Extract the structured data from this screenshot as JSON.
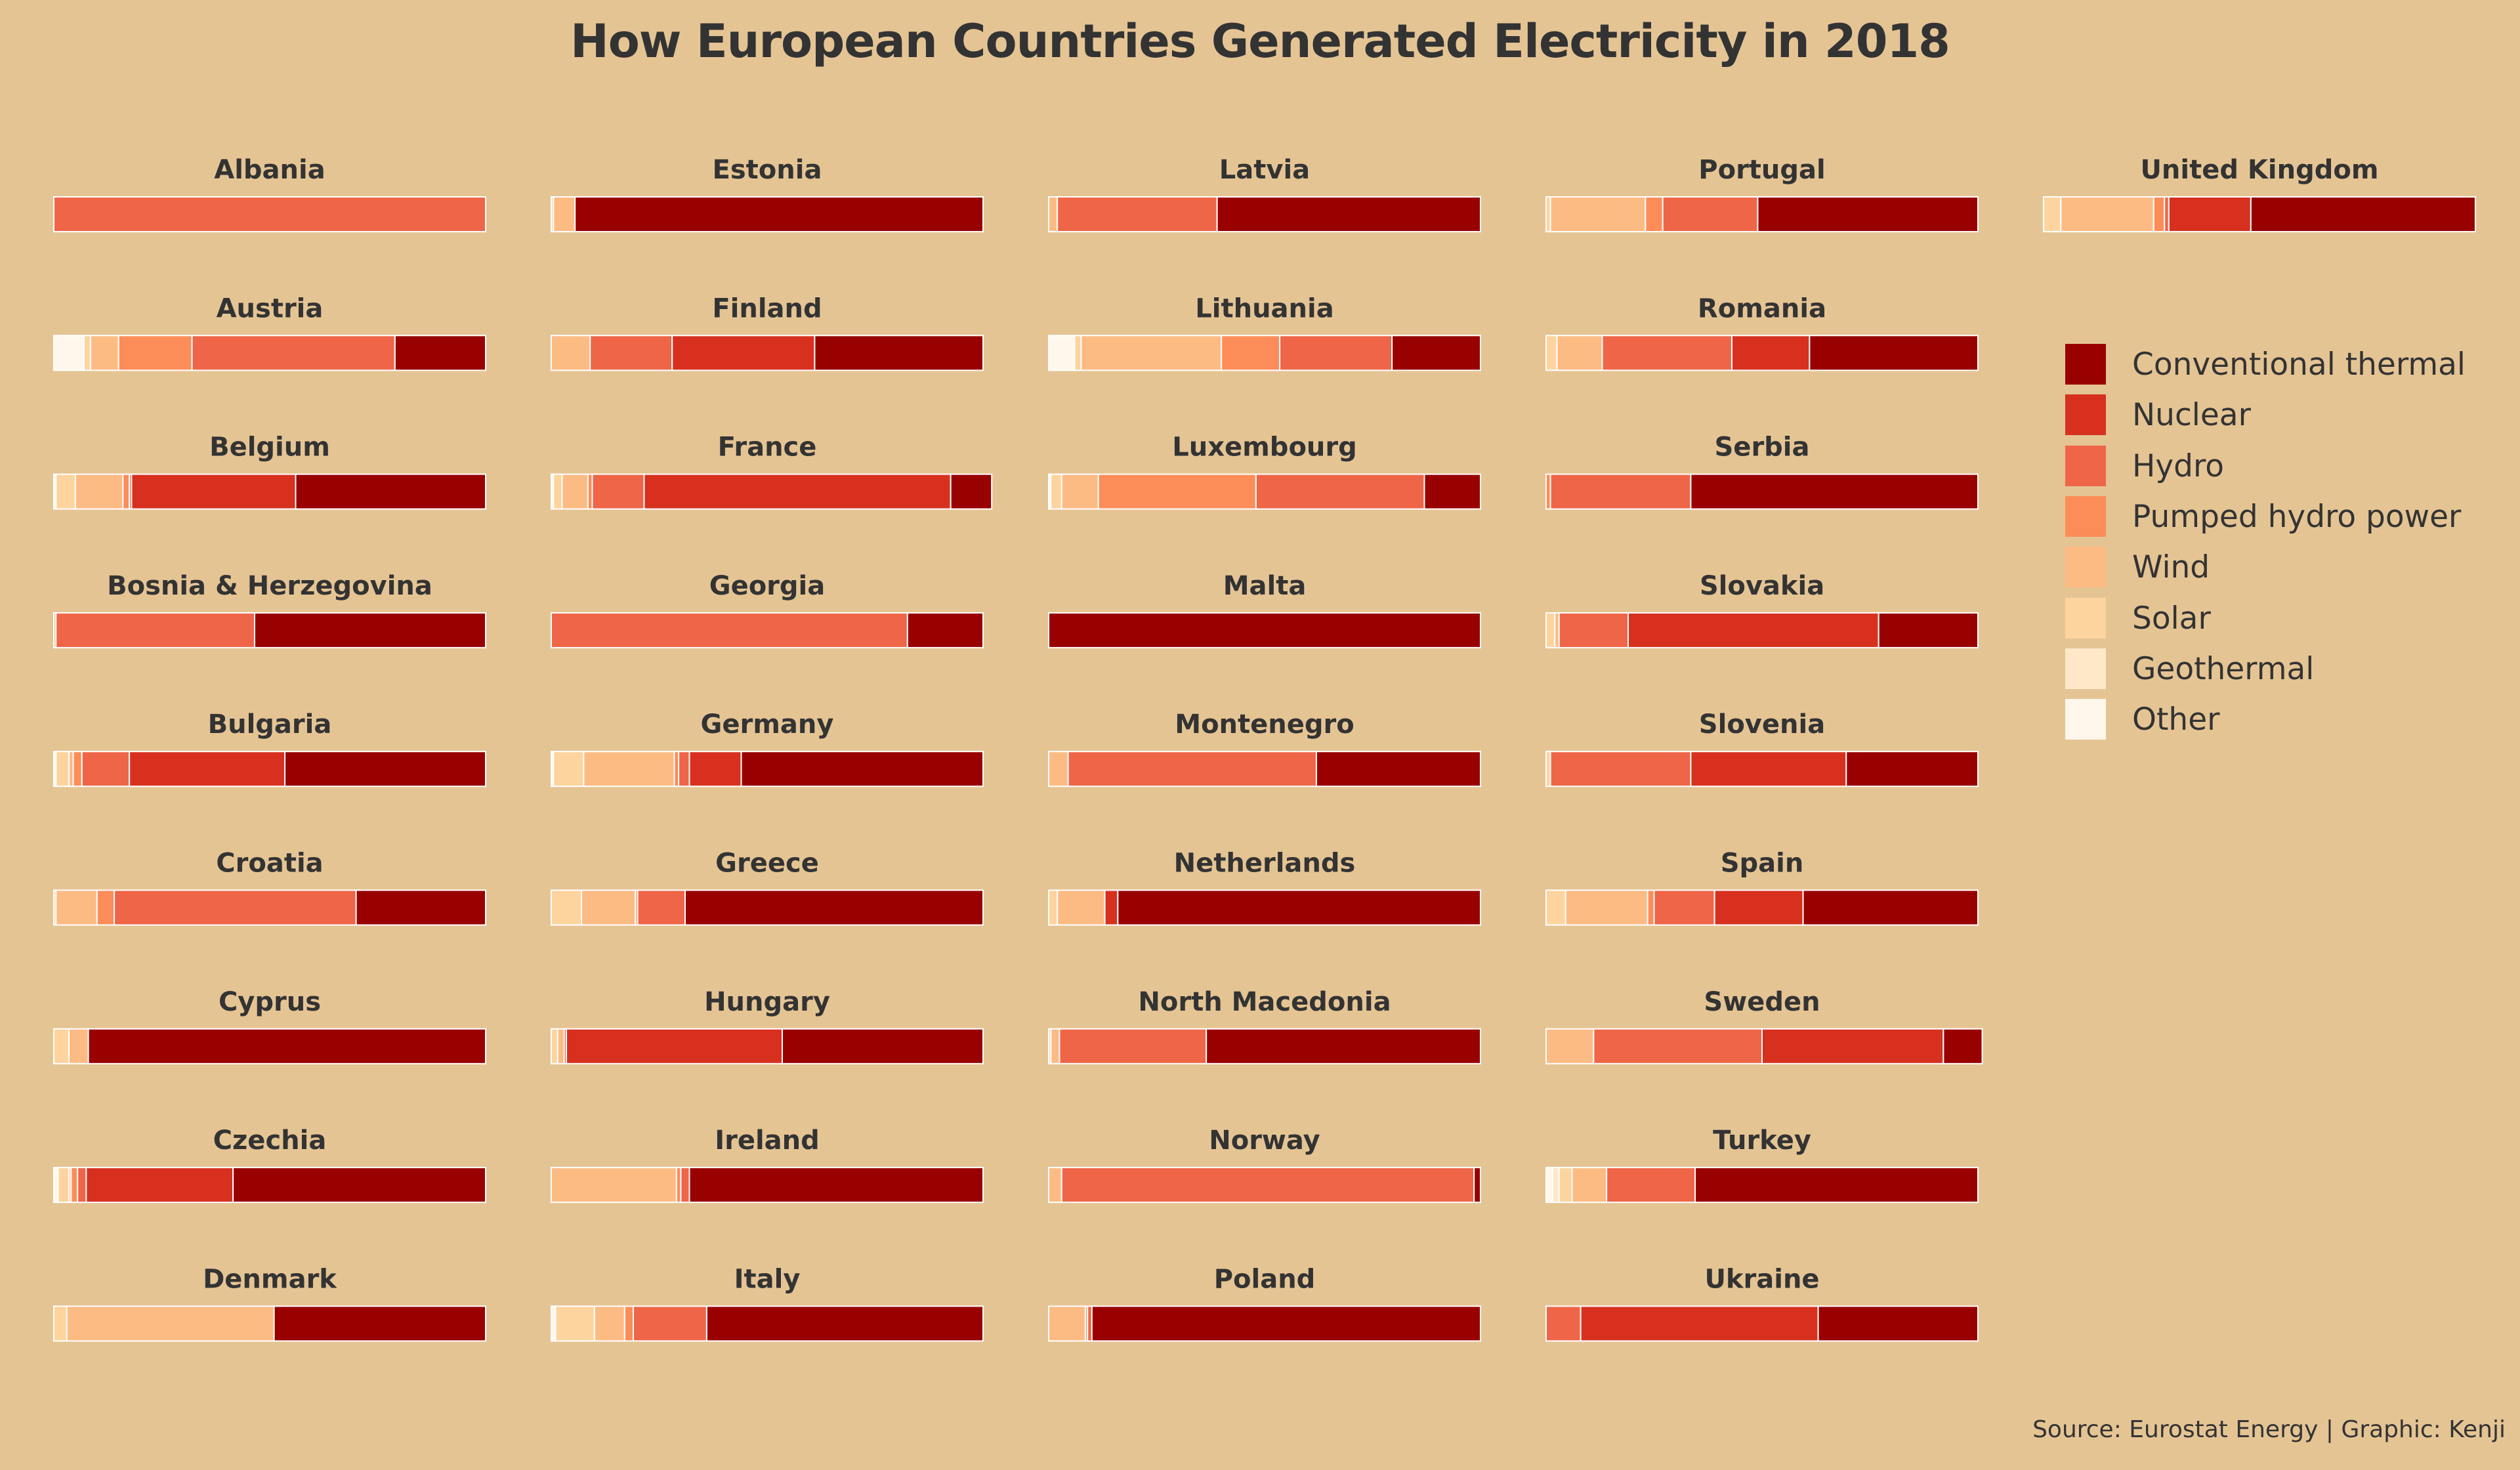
{
  "title": "How European Countries Generated Electricity in 2018",
  "source": "Source: Eurostat Energy | Graphic: Kenji",
  "chart_data": {
    "type": "bar",
    "subtype": "stacked-100-percent-small-multiples",
    "unit": "share of electricity generation (%)",
    "xlim": [
      0,
      100
    ],
    "grid": false,
    "legend_position": "right",
    "categories": [
      "Other",
      "Geothermal",
      "Solar",
      "Wind",
      "Pumped hydro power",
      "Hydro",
      "Nuclear",
      "Conventional thermal"
    ],
    "legend": [
      {
        "name": "Conventional thermal",
        "color": "#990000"
      },
      {
        "name": "Nuclear",
        "color": "#d7301f"
      },
      {
        "name": "Hydro",
        "color": "#ef6548"
      },
      {
        "name": "Pumped hydro power",
        "color": "#fc8d59"
      },
      {
        "name": "Wind",
        "color": "#fdbb84"
      },
      {
        "name": "Solar",
        "color": "#fdd49e"
      },
      {
        "name": "Geothermal",
        "color": "#fee8c8"
      },
      {
        "name": "Other",
        "color": "#fff7ec"
      }
    ],
    "colors": {
      "Other": "#fff7ec",
      "Geothermal": "#fee8c8",
      "Solar": "#fdd49e",
      "Wind": "#fdbb84",
      "Pumped hydro power": "#fc8d59",
      "Hydro": "#ef6548",
      "Nuclear": "#d7301f",
      "Conventional thermal": "#990000"
    },
    "countries": [
      {
        "name": "Albania",
        "values": [
          0,
          0,
          0,
          0,
          0,
          100,
          0,
          0
        ]
      },
      {
        "name": "Austria",
        "values": [
          7,
          0,
          1.5,
          6.5,
          17,
          47,
          0,
          21
        ]
      },
      {
        "name": "Belgium",
        "values": [
          0.5,
          0,
          4.5,
          11,
          1.5,
          0.5,
          38,
          44
        ]
      },
      {
        "name": "Bosnia & Herzegovina",
        "values": [
          0,
          0,
          0,
          0.5,
          0,
          46,
          0,
          53.5
        ]
      },
      {
        "name": "Bulgaria",
        "values": [
          0.5,
          0,
          3,
          1,
          2,
          11,
          36,
          46.5
        ]
      },
      {
        "name": "Croatia",
        "values": [
          0,
          0,
          0.5,
          9.5,
          4,
          56,
          0,
          30
        ]
      },
      {
        "name": "Cyprus",
        "values": [
          0,
          0,
          3.5,
          4.5,
          0,
          0,
          0,
          92
        ]
      },
      {
        "name": "Czechia",
        "values": [
          1,
          0,
          2.5,
          0.5,
          1.5,
          2,
          34,
          58.5
        ]
      },
      {
        "name": "Denmark",
        "values": [
          0,
          0,
          3,
          48,
          0,
          0,
          0,
          49
        ]
      },
      {
        "name": "Estonia",
        "values": [
          0,
          0,
          0.5,
          5,
          0,
          0,
          0,
          94.5
        ]
      },
      {
        "name": "Finland",
        "values": [
          0,
          0,
          0,
          9,
          0,
          19,
          33,
          39
        ]
      },
      {
        "name": "France",
        "values": [
          0.5,
          0,
          2,
          6,
          1,
          12,
          71,
          9.5
        ]
      },
      {
        "name": "Georgia",
        "values": [
          0,
          0,
          0,
          0,
          0,
          82.5,
          0,
          17.5
        ]
      },
      {
        "name": "Germany",
        "values": [
          0.5,
          0,
          7,
          21,
          1,
          2.5,
          12,
          56
        ]
      },
      {
        "name": "Greece",
        "values": [
          0,
          0,
          7,
          12.5,
          0.5,
          11,
          0,
          69
        ]
      },
      {
        "name": "Hungary",
        "values": [
          0,
          0,
          1.5,
          1.5,
          0,
          0.5,
          50,
          46.5
        ]
      },
      {
        "name": "Ireland",
        "values": [
          0,
          0,
          0,
          29,
          1,
          2,
          0,
          68
        ]
      },
      {
        "name": "Italy",
        "values": [
          1,
          0,
          9,
          7,
          2,
          17,
          0,
          64
        ]
      },
      {
        "name": "Latvia",
        "values": [
          0,
          0,
          0,
          2,
          0,
          37,
          0,
          61
        ]
      },
      {
        "name": "Lithuania",
        "values": [
          6,
          0,
          1.5,
          32.5,
          13.5,
          26,
          0,
          20.5
        ]
      },
      {
        "name": "Luxembourg",
        "values": [
          0.5,
          0,
          2.5,
          8.5,
          36.5,
          39,
          0,
          13
        ]
      },
      {
        "name": "Malta",
        "values": [
          0,
          0,
          0,
          0,
          0,
          0,
          0,
          100
        ]
      },
      {
        "name": "Montenegro",
        "values": [
          0,
          0,
          0,
          4.5,
          0,
          57.5,
          0,
          38
        ]
      },
      {
        "name": "Netherlands",
        "values": [
          0,
          0,
          2,
          11,
          0,
          0,
          3,
          84
        ]
      },
      {
        "name": "North Macedonia",
        "values": [
          0,
          0,
          0.5,
          2,
          0,
          34,
          0,
          63.5
        ]
      },
      {
        "name": "Norway",
        "values": [
          0,
          0,
          0,
          3,
          0,
          95.5,
          0,
          1.5
        ]
      },
      {
        "name": "Poland",
        "values": [
          0,
          0,
          0,
          8.5,
          0.5,
          1,
          0,
          90
        ]
      },
      {
        "name": "Portugal",
        "values": [
          0,
          0,
          1,
          22,
          4,
          22,
          0,
          51
        ]
      },
      {
        "name": "Romania",
        "values": [
          0,
          0,
          2.5,
          10.5,
          0,
          30,
          18,
          39
        ]
      },
      {
        "name": "Serbia",
        "values": [
          0,
          0,
          0,
          0,
          1,
          32.5,
          0,
          66.5
        ]
      },
      {
        "name": "Slovakia",
        "values": [
          0,
          0,
          2,
          1,
          0,
          16,
          58,
          23
        ]
      },
      {
        "name": "Slovenia",
        "values": [
          0,
          0,
          1,
          0,
          0,
          32.5,
          36,
          30.5
        ]
      },
      {
        "name": "Spain",
        "values": [
          0,
          0,
          4.5,
          19,
          1.5,
          14,
          20.5,
          40.5
        ]
      },
      {
        "name": "Sweden",
        "values": [
          0,
          0,
          0,
          11,
          0,
          39,
          42,
          9
        ]
      },
      {
        "name": "Turkey",
        "values": [
          1.5,
          1.5,
          3,
          8,
          0,
          20.5,
          0,
          65.5
        ]
      },
      {
        "name": "Ukraine",
        "values": [
          0,
          0,
          0,
          0,
          0,
          8,
          55,
          37
        ]
      },
      {
        "name": "United Kingdom",
        "values": [
          0,
          0,
          4,
          21.5,
          2.5,
          1,
          19,
          52
        ]
      }
    ]
  }
}
